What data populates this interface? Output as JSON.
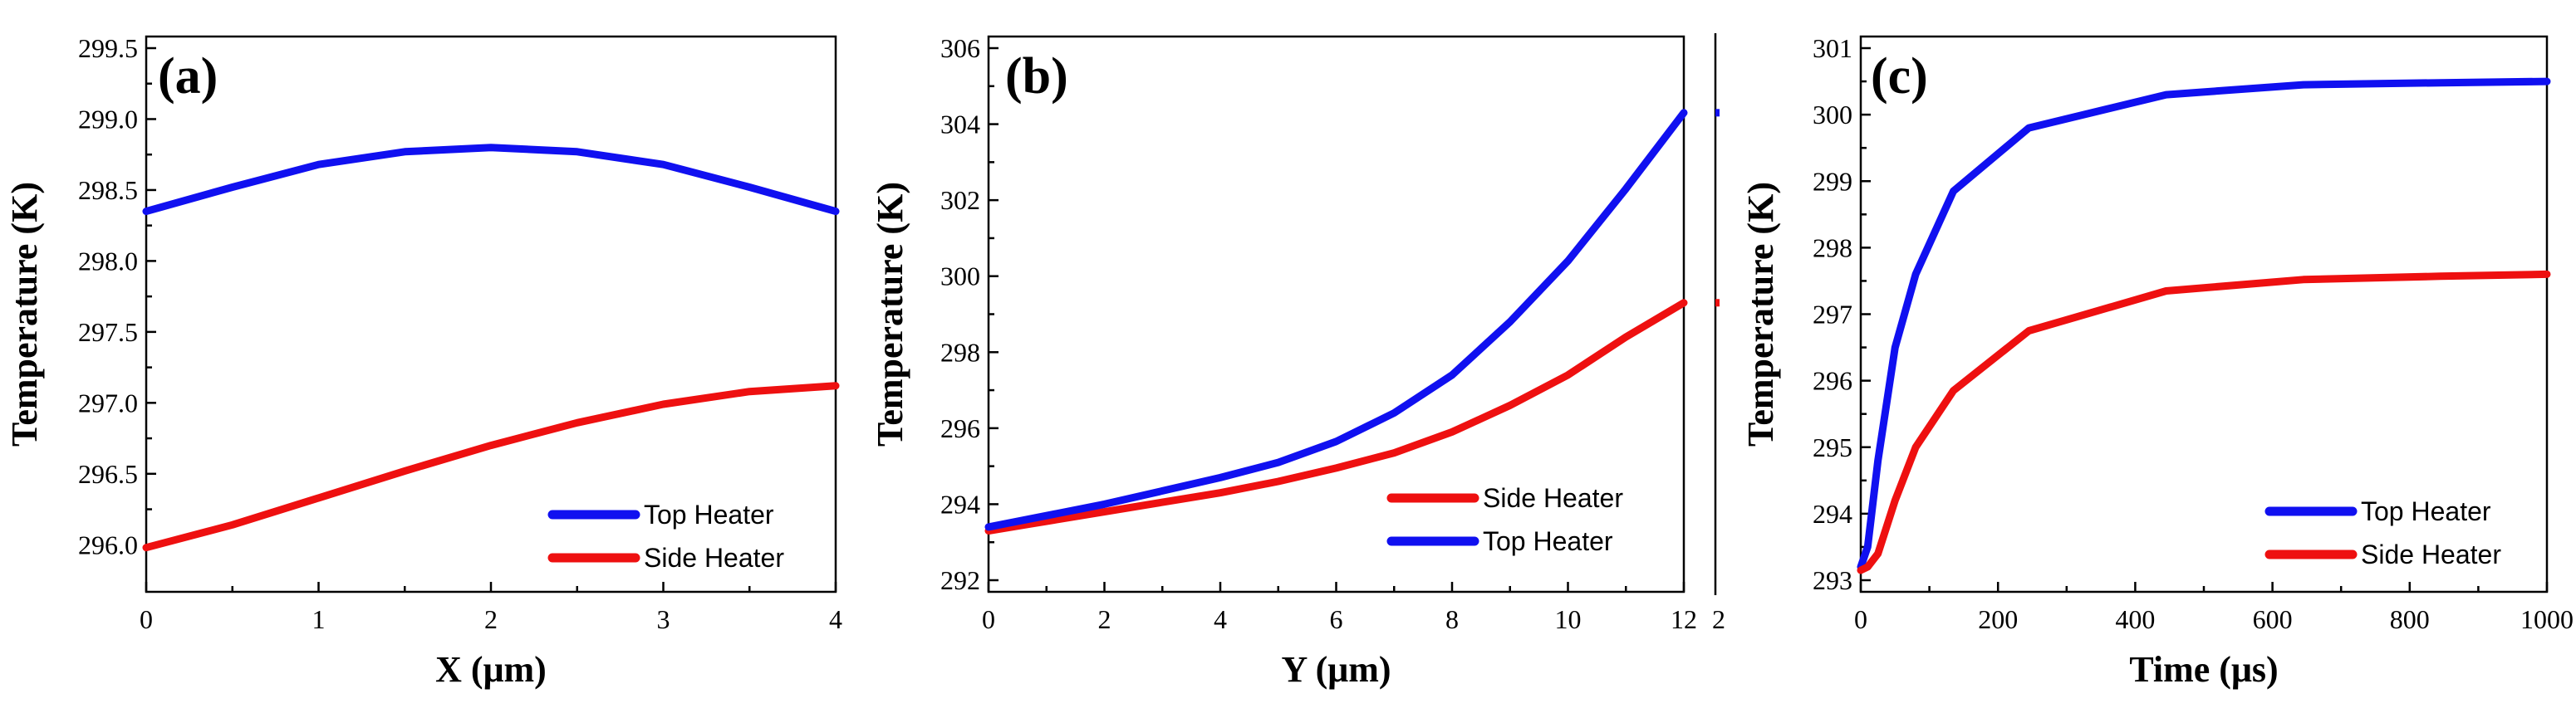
{
  "figure": {
    "colors": {
      "top": "#1010f0",
      "side": "#ee1010"
    }
  },
  "chart_data": [
    {
      "type": "line",
      "panel_label": "(a)",
      "xlabel": "X (μm)",
      "ylabel": "Temperature (K)",
      "xlim": [
        0,
        4
      ],
      "ylim": [
        295.75,
        299.5
      ],
      "xticks": [
        0,
        1,
        2,
        3,
        4
      ],
      "xtick_labels": [
        "0",
        "1",
        "2",
        "3",
        "4"
      ],
      "yticks": [
        296.0,
        296.5,
        297.0,
        297.5,
        298.0,
        298.5,
        299.0,
        299.5
      ],
      "ytick_labels": [
        "296.0",
        "296.5",
        "297.0",
        "297.5",
        "298.0",
        "298.5",
        "299.0",
        "299.5"
      ],
      "legend": [
        "Top Heater",
        "Side Heater"
      ],
      "legend_position": "bottom-right",
      "series": [
        {
          "name": "Top Heater",
          "color_key": "top",
          "x": [
            0,
            0.5,
            1,
            1.5,
            2,
            2.5,
            3,
            3.5,
            4
          ],
          "y": [
            298.35,
            298.52,
            298.68,
            298.77,
            298.8,
            298.77,
            298.68,
            298.52,
            298.35
          ]
        },
        {
          "name": "Side Heater",
          "color_key": "side",
          "x": [
            0,
            0.5,
            1,
            1.5,
            2,
            2.5,
            3,
            3.5,
            4
          ],
          "y": [
            295.98,
            296.14,
            296.33,
            296.52,
            296.7,
            296.86,
            296.99,
            297.08,
            297.12
          ]
        }
      ]
    },
    {
      "type": "line",
      "panel_label": "(b)",
      "xlabel": "Y (μm)",
      "ylabel": "Temperature (K)",
      "xlim": [
        0,
        12
      ],
      "ylim": [
        292,
        306
      ],
      "xticks": [
        0,
        2,
        4,
        6,
        8,
        10,
        12
      ],
      "xtick_labels": [
        "0",
        "2",
        "4",
        "6",
        "8",
        "10",
        "12"
      ],
      "yticks": [
        292,
        294,
        296,
        298,
        300,
        302,
        304,
        306
      ],
      "ytick_labels": [
        "292",
        "294",
        "296",
        "298",
        "300",
        "302",
        "304",
        "306"
      ],
      "legend": [
        "Side Heater",
        "Top Heater"
      ],
      "legend_position": "bottom-right",
      "edge_tick_label": "2",
      "series": [
        {
          "name": "Side Heater",
          "color_key": "side",
          "x": [
            0,
            1,
            2,
            3,
            4,
            5,
            6,
            7,
            8,
            9,
            10,
            11,
            12
          ],
          "y": [
            293.3,
            293.55,
            293.8,
            294.05,
            294.3,
            294.6,
            294.95,
            295.35,
            295.9,
            296.6,
            297.4,
            298.4,
            299.3
          ]
        },
        {
          "name": "Top Heater",
          "color_key": "top",
          "x": [
            0,
            1,
            2,
            3,
            4,
            5,
            6,
            7,
            8,
            9,
            10,
            11,
            12
          ],
          "y": [
            293.4,
            293.7,
            294.0,
            294.35,
            294.7,
            295.1,
            295.65,
            296.4,
            297.4,
            298.8,
            300.4,
            302.3,
            304.3
          ]
        }
      ]
    },
    {
      "type": "line",
      "panel_label": "(c)",
      "xlabel": "Time (μs)",
      "ylabel": "Temperature (K)",
      "xlim": [
        0,
        1000
      ],
      "ylim": [
        293,
        301
      ],
      "xticks": [
        0,
        200,
        400,
        600,
        800,
        1000
      ],
      "xtick_labels": [
        "0",
        "200",
        "400",
        "600",
        "800",
        "1000"
      ],
      "yticks": [
        293,
        294,
        295,
        296,
        297,
        298,
        299,
        300,
        301
      ],
      "ytick_labels": [
        "293",
        "294",
        "295",
        "296",
        "297",
        "298",
        "299",
        "300",
        "301"
      ],
      "legend": [
        "Top Heater",
        "Side Heater"
      ],
      "legend_position": "bottom-right",
      "series": [
        {
          "name": "Top Heater",
          "color_key": "top",
          "x": [
            0,
            10,
            25,
            50,
            80,
            135,
            245,
            445,
            645,
            845,
            1000
          ],
          "y": [
            293.2,
            293.5,
            294.8,
            296.5,
            297.6,
            298.85,
            299.8,
            300.3,
            300.45,
            300.48,
            300.5
          ]
        },
        {
          "name": "Side Heater",
          "color_key": "side",
          "x": [
            0,
            10,
            25,
            50,
            80,
            135,
            245,
            445,
            645,
            845,
            1000
          ],
          "y": [
            293.15,
            293.2,
            293.4,
            294.2,
            295.0,
            295.85,
            296.75,
            297.35,
            297.52,
            297.57,
            297.6
          ]
        }
      ]
    }
  ]
}
